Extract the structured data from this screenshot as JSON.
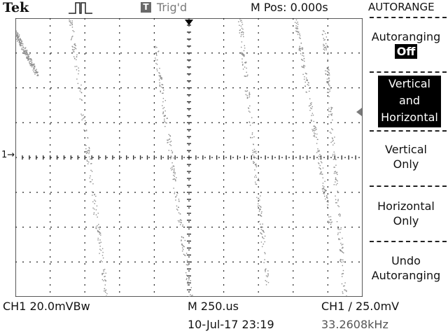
{
  "header": {
    "brand": "Tek",
    "trigger_badge": "T",
    "trigger_status": "Trig'd",
    "m_pos": "M Pos: 0.000s"
  },
  "markers": {
    "channel_marker": "1"
  },
  "menu": {
    "title": "AUTORANGE",
    "items": [
      {
        "line1": "Autoranging",
        "line2": "Off"
      },
      {
        "line1": "Vertical",
        "line2": "and",
        "line3": "Horizontal"
      },
      {
        "line1": "Vertical",
        "line2": "Only"
      },
      {
        "line1": "Horizontal",
        "line2": "Only"
      },
      {
        "line1": "Undo",
        "line2": "Autoranging"
      }
    ]
  },
  "readouts": {
    "ch1_scale": "CH1 20.0mVBw",
    "timebase": "M 250.us",
    "trigger": "CH1 / 25.0mV",
    "date": "10-Jul-17 23:19",
    "frequency": "33.2608kHz"
  },
  "colors": {
    "trace": "#8c8c8c",
    "grid": "#222222",
    "background": "#ffffff"
  }
}
